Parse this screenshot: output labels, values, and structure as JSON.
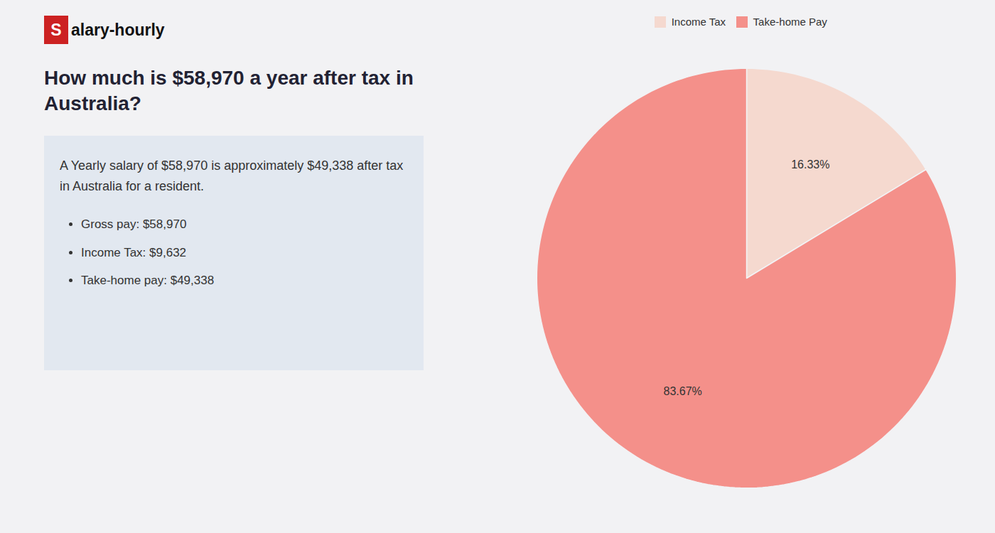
{
  "chart_data": {
    "type": "pie",
    "title": "How much is $58,970 a year after tax in Australia?",
    "subtitle": "A Yearly salary of $58,970 is approximately $49,338 after tax in Australia for a resident.",
    "annotations": [
      "Salary-hourly",
      "Gross pay: $58,970",
      "Income Tax: $9,632",
      "Take-home pay: $49,338"
    ],
    "categories": [
      "Income Tax",
      "Take-home Pay"
    ],
    "values": [
      16.33,
      83.67
    ],
    "value_labels": [
      "16.33%",
      "83.67%"
    ],
    "colors": [
      "#f5d9cf",
      "#f4908a"
    ],
    "data_labels": true,
    "legend": "top"
  }
}
